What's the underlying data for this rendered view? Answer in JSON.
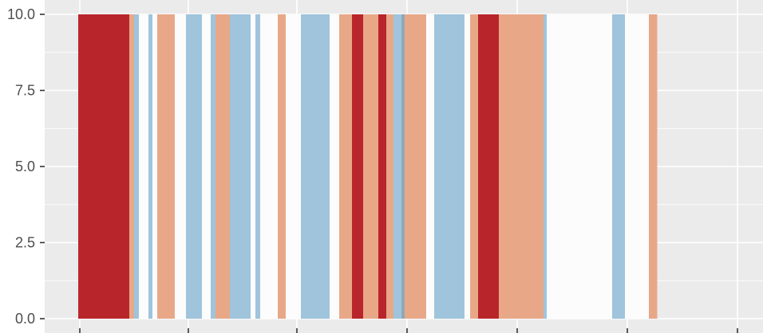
{
  "chart_data": {
    "type": "bar",
    "title": "",
    "xlabel": "",
    "ylabel": "",
    "ylim": [
      0,
      10.5
    ],
    "yticks": [
      "0.0",
      "2.5",
      "5.0",
      "7.5",
      "10.0"
    ],
    "ytick_values": [
      0,
      2.5,
      5,
      7.5,
      10
    ],
    "grid": true,
    "legend": "none",
    "colors": {
      "panel": "#ebebeb",
      "gridline": "#ffffff",
      "tick_label": "#4d4d4d",
      "dark_red": "#b8262c",
      "salmon": "#e8a888",
      "light_blue": "#9fc4dc",
      "white_stripe": "#fcfcfc",
      "gray_blue": "#8fa8b8"
    },
    "note_x": "x axis has no printed tick labels; bars are stripes of equal value 10 colored by category",
    "stripes": [
      {
        "color": "dark_red",
        "value": 10
      },
      {
        "color": "salmon",
        "value": 10
      },
      {
        "color": "light_blue",
        "value": 10
      },
      {
        "color": "white_stripe",
        "value": 10
      },
      {
        "color": "light_blue",
        "value": 10
      },
      {
        "color": "white_stripe",
        "value": 10
      },
      {
        "color": "salmon",
        "value": 10
      },
      {
        "color": "white_stripe",
        "value": 10
      },
      {
        "color": "light_blue",
        "value": 10
      },
      {
        "color": "white_stripe",
        "value": 10
      },
      {
        "color": "light_blue",
        "value": 10
      },
      {
        "color": "salmon",
        "value": 10
      },
      {
        "color": "light_blue",
        "value": 10
      },
      {
        "color": "white_stripe",
        "value": 10
      },
      {
        "color": "light_blue",
        "value": 10
      },
      {
        "color": "white_stripe",
        "value": 10
      },
      {
        "color": "salmon",
        "value": 10
      },
      {
        "color": "white_stripe",
        "value": 10
      },
      {
        "color": "light_blue",
        "value": 10
      },
      {
        "color": "white_stripe",
        "value": 10
      },
      {
        "color": "salmon",
        "value": 10
      },
      {
        "color": "dark_red",
        "value": 10
      },
      {
        "color": "salmon",
        "value": 10
      },
      {
        "color": "dark_red",
        "value": 10
      },
      {
        "color": "salmon",
        "value": 10
      },
      {
        "color": "light_blue",
        "value": 10
      },
      {
        "color": "gray_blue",
        "value": 10
      },
      {
        "color": "salmon",
        "value": 10
      },
      {
        "color": "white_stripe",
        "value": 10
      },
      {
        "color": "light_blue",
        "value": 10
      },
      {
        "color": "white_stripe",
        "value": 10
      },
      {
        "color": "salmon",
        "value": 10
      },
      {
        "color": "dark_red",
        "value": 10
      },
      {
        "color": "salmon",
        "value": 10
      },
      {
        "color": "light_blue",
        "value": 10
      },
      {
        "color": "white_stripe",
        "value": 10
      },
      {
        "color": "light_blue",
        "value": 10
      },
      {
        "color": "white_stripe",
        "value": 10
      },
      {
        "color": "salmon",
        "value": 10
      }
    ]
  }
}
